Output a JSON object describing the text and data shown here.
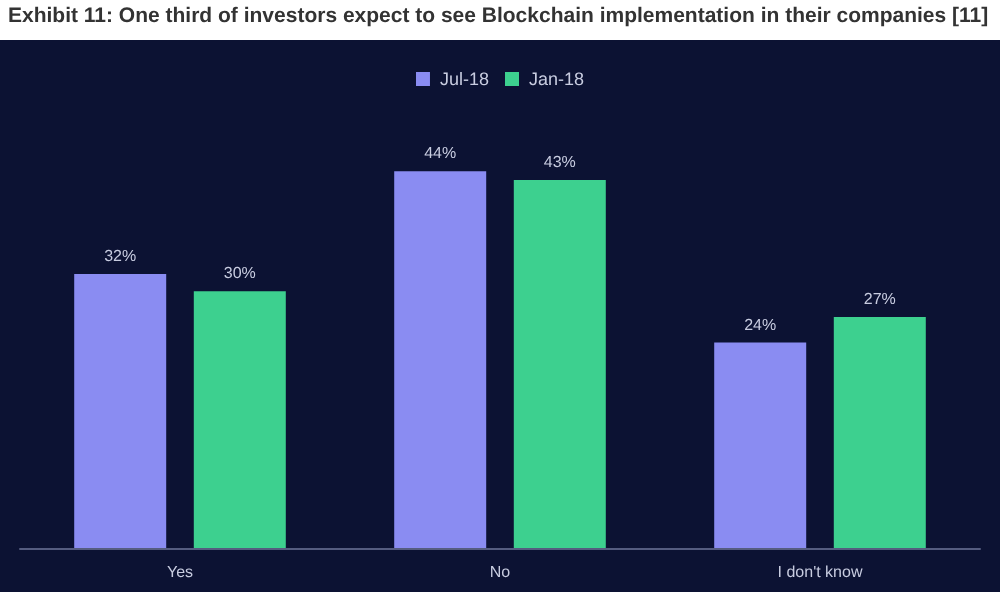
{
  "chart_data": {
    "type": "bar",
    "title": "Exhibit 11: One third of investors expect to see Blockchain implementation in their companies [11]",
    "categories": [
      "Yes",
      "No",
      "I don't know"
    ],
    "series": [
      {
        "name": "Jul-18",
        "color": "#8a8cf2",
        "values": [
          32,
          44,
          24
        ],
        "value_labels": [
          "32%",
          "44%",
          "24%"
        ]
      },
      {
        "name": "Jan-18",
        "color": "#3dd08f",
        "values": [
          30,
          43,
          27
        ],
        "value_labels": [
          "30%",
          "43%",
          "27%"
        ]
      }
    ],
    "legend": "top",
    "grid": false
  }
}
